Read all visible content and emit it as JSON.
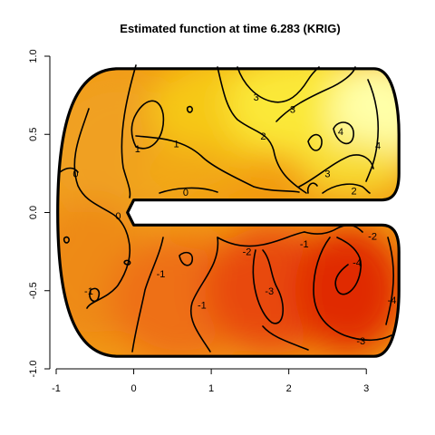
{
  "chart_data": {
    "type": "heatmap",
    "title": "Estimated function at time 6.283 (KRIG)",
    "xlabel": "",
    "ylabel": "",
    "xlim": [
      -1,
      3.5
    ],
    "ylim": [
      -1,
      1
    ],
    "x_ticks": [
      -1,
      0,
      1,
      2,
      3
    ],
    "x_tick_labels": [
      "-1",
      "0",
      "1",
      "2",
      "3"
    ],
    "y_ticks": [
      -1,
      -0.5,
      0,
      0.5,
      1
    ],
    "y_tick_labels": [
      "-1.0",
      "-0.5",
      "0.0",
      "0.5",
      "1.0"
    ],
    "color_scale": {
      "low": -4,
      "high": 4,
      "stops": [
        "#dd2200",
        "#ee6600",
        "#f5a000",
        "#f8d000",
        "#ffff55",
        "#ffffc8"
      ]
    },
    "domain": "C-shaped region (Ramsay horseshoe)",
    "contour_labels": [
      {
        "text": "3",
        "x": 1.58,
        "y": 0.74
      },
      {
        "text": "3",
        "x": 2.05,
        "y": 0.66
      },
      {
        "text": "2",
        "x": 1.67,
        "y": 0.49
      },
      {
        "text": "1",
        "x": 0.55,
        "y": 0.44
      },
      {
        "text": "1",
        "x": 0.05,
        "y": 0.41
      },
      {
        "text": "4",
        "x": 2.67,
        "y": 0.52
      },
      {
        "text": "4",
        "x": 3.15,
        "y": 0.43
      },
      {
        "text": "3",
        "x": 2.5,
        "y": 0.25
      },
      {
        "text": "2",
        "x": 2.84,
        "y": 0.14
      },
      {
        "text": "0",
        "x": 0.67,
        "y": 0.13
      },
      {
        "text": "0",
        "x": -0.75,
        "y": 0.25
      },
      {
        "text": "0",
        "x": -0.2,
        "y": -0.02
      },
      {
        "text": "-1",
        "x": 2.2,
        "y": -0.2
      },
      {
        "text": "-2",
        "x": 3.08,
        "y": -0.15
      },
      {
        "text": "-2",
        "x": 1.46,
        "y": -0.25
      },
      {
        "text": "-1",
        "x": 0.35,
        "y": -0.39
      },
      {
        "text": "-3",
        "x": 1.75,
        "y": -0.5
      },
      {
        "text": "-4",
        "x": 2.88,
        "y": -0.32
      },
      {
        "text": "-4",
        "x": 3.33,
        "y": -0.56
      },
      {
        "text": "-1",
        "x": 0.88,
        "y": -0.59
      },
      {
        "text": "-1",
        "x": -0.58,
        "y": -0.5
      },
      {
        "text": "-3",
        "x": 2.93,
        "y": -0.82
      }
    ]
  }
}
